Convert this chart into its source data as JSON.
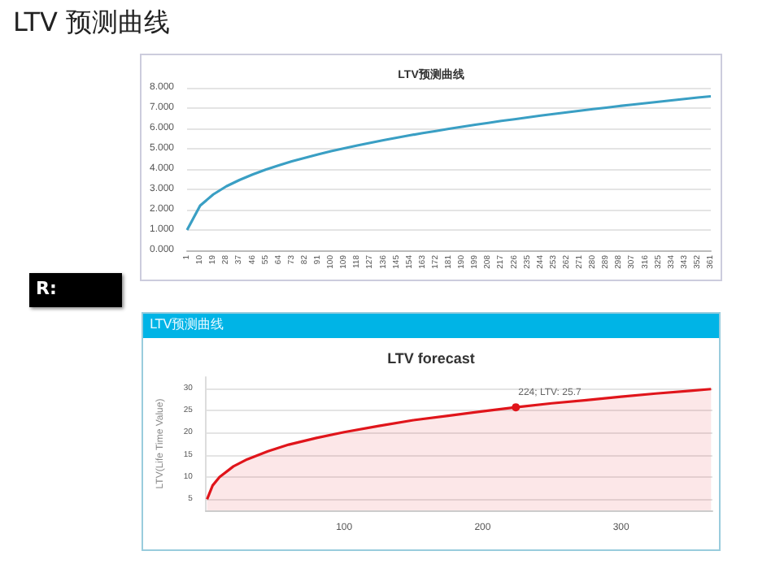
{
  "chart_data": [
    {
      "type": "line",
      "title": "LTV预测曲线",
      "annotations": [
        "LTV 预测曲线"
      ],
      "categories": [
        "1",
        "10",
        "19",
        "28",
        "37",
        "46",
        "55",
        "64",
        "73",
        "82",
        "91",
        "100",
        "109",
        "118",
        "127",
        "136",
        "145",
        "154",
        "163",
        "172",
        "181",
        "190",
        "199",
        "208",
        "217",
        "226",
        "235",
        "244",
        "253",
        "262",
        "271",
        "280",
        "289",
        "298",
        "307",
        "316",
        "325",
        "334",
        "343",
        "352",
        "361"
      ],
      "series": [
        {
          "color": "#3a9fc4",
          "values": [
            1.0,
            2.2,
            2.75,
            3.15,
            3.46,
            3.73,
            3.97,
            4.18,
            4.38,
            4.55,
            4.72,
            4.88,
            5.02,
            5.16,
            5.29,
            5.42,
            5.54,
            5.66,
            5.77,
            5.87,
            5.98,
            6.08,
            6.18,
            6.27,
            6.37,
            6.45,
            6.54,
            6.63,
            6.71,
            6.79,
            6.87,
            6.95,
            7.02,
            7.1,
            7.17,
            7.24,
            7.31,
            7.38,
            7.45,
            7.52,
            7.58
          ]
        }
      ],
      "ylim": [
        0,
        8
      ],
      "yticks": [
        {
          "value": 0,
          "label": "0.000"
        },
        {
          "value": 1,
          "label": "1.000"
        },
        {
          "value": 2,
          "label": "2.000"
        },
        {
          "value": 3,
          "label": "3.000"
        },
        {
          "value": 4,
          "label": "4.000"
        },
        {
          "value": 5,
          "label": "5.000"
        },
        {
          "value": 6,
          "label": "6.000"
        },
        {
          "value": 7,
          "label": "7.000"
        },
        {
          "value": 8,
          "label": "8.000"
        }
      ],
      "grid": "y",
      "marker": "none"
    },
    {
      "type": "area",
      "title": "LTV forecast",
      "ylabel": "LTV(Life Time Value)",
      "annotations": [
        "R:",
        "LTV预测曲线",
        {
          "text": "224; LTV: 25.7",
          "x": 224,
          "y": 25.7
        }
      ],
      "series": [
        {
          "color": "#e0151b",
          "x": [
            1,
            5,
            10,
            20,
            30,
            45,
            60,
            80,
            100,
            125,
            150,
            175,
            200,
            224,
            250,
            275,
            300,
            325,
            350,
            365
          ],
          "values": [
            5.0,
            8.1,
            10.0,
            12.4,
            14.0,
            15.8,
            17.3,
            18.8,
            20.1,
            21.5,
            22.8,
            23.8,
            24.8,
            25.7,
            26.6,
            27.3,
            28.1,
            28.8,
            29.4,
            29.8
          ]
        }
      ],
      "xlim": [
        0,
        366
      ],
      "xticks": [
        100,
        200,
        300
      ],
      "ylim": [
        2.5,
        32.5
      ],
      "yticks": [
        5,
        10,
        15,
        20,
        25,
        30
      ],
      "grid": "y",
      "marker": "none"
    }
  ]
}
